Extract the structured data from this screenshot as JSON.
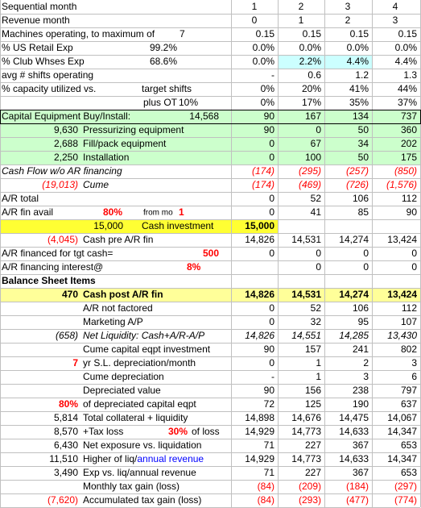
{
  "sheet": {
    "rows": [
      {
        "b": "Sequential month",
        "values": [
          "1",
          "2",
          "3",
          "4"
        ]
      },
      {
        "b": "Revenue month",
        "values": [
          "0",
          "1",
          "2",
          "3"
        ]
      },
      {
        "b": "Machines operating, to maximum of",
        "c": "7",
        "values": [
          "0.15",
          "0.15",
          "0.15",
          "0.15"
        ]
      },
      {
        "b": "% US Retail Exp",
        "c": "99.2%",
        "values": [
          "0.0%",
          "0.0%",
          "0.0%",
          "0.0%"
        ]
      },
      {
        "b": "% Club Whses Exp",
        "c": "68.6%",
        "values": [
          "0.0%",
          "2.2%",
          "4.4%",
          "4.4%"
        ]
      },
      {
        "b": "avg # shifts operating",
        "values": [
          "-",
          "0.6",
          "1.2",
          "1.3"
        ]
      },
      {
        "b": "% capacity utilized vs.",
        "c": "target shifts",
        "values": [
          "0%",
          "20%",
          "41%",
          "44%"
        ]
      },
      {
        "c": "plus OT",
        "d": "10%",
        "values": [
          "0%",
          "17%",
          "35%",
          "37%"
        ]
      },
      {
        "b": "Capital Equipment Buy/Install:",
        "c": "14,568",
        "values": [
          "90",
          "167",
          "134",
          "737"
        ]
      },
      {
        "a": "9,630",
        "b": "Pressurizing equipment",
        "values": [
          "90",
          "0",
          "50",
          "360"
        ]
      },
      {
        "a": "2,688",
        "b": "Fill/pack equipment",
        "values": [
          "0",
          "67",
          "34",
          "202"
        ]
      },
      {
        "a": "2,250",
        "b": "Installation",
        "values": [
          "0",
          "100",
          "50",
          "175"
        ]
      },
      {
        "b": "Cash Flow w/o AR financing",
        "values": [
          "(174)",
          "(295)",
          "(257)",
          "(850)"
        ]
      },
      {
        "a": "(19,013)",
        "b": "Cume",
        "values": [
          "(174)",
          "(469)",
          "(726)",
          "(1,576)"
        ]
      },
      {
        "b": "A/R total",
        "values": [
          "0",
          "52",
          "106",
          "112"
        ]
      },
      {
        "b": "A/R fin avail",
        "c": "80%",
        "d": "from mo",
        "e": "1",
        "values": [
          "0",
          "41",
          "85",
          "90"
        ]
      },
      {
        "a": "15,000",
        "b": "Cash investment",
        "values": [
          "15,000",
          null,
          null,
          null
        ]
      },
      {
        "a": "(4,045)",
        "b": "Cash pre A/R fin",
        "values": [
          "14,826",
          "14,531",
          "14,274",
          "13,424"
        ]
      },
      {
        "b": "A/R financed for tgt cash=",
        "c": "500",
        "values": [
          "0",
          "0",
          "0",
          "0"
        ]
      },
      {
        "b": "A/R financing interest@",
        "c": "8%",
        "values": [
          null,
          "0",
          "0",
          "0"
        ]
      },
      {
        "b": "Balance Sheet Items"
      },
      {
        "a": "470",
        "b": "Cash post A/R fin",
        "values": [
          "14,826",
          "14,531",
          "14,274",
          "13,424"
        ]
      },
      {
        "b": "A/R not factored",
        "values": [
          "0",
          "52",
          "106",
          "112"
        ]
      },
      {
        "b": "Marketing A/P",
        "values": [
          "0",
          "32",
          "95",
          "107"
        ]
      },
      {
        "a": "(658)",
        "b": "Net Liquidity: Cash+A/R-A/P",
        "values": [
          "14,826",
          "14,551",
          "14,285",
          "13,430"
        ]
      },
      {
        "b": "Cume capital eqpt investment",
        "values": [
          "90",
          "157",
          "241",
          "802"
        ]
      },
      {
        "a": "7",
        "b": "yr S.L. depreciation/month",
        "values": [
          "0",
          "1",
          "2",
          "3"
        ]
      },
      {
        "b": "Cume depreciation",
        "values": [
          "-",
          "1",
          "3",
          "6"
        ]
      },
      {
        "b": "Depreciated value",
        "values": [
          "90",
          "156",
          "238",
          "797"
        ]
      },
      {
        "a": "80%",
        "b": "of depreciated capital eqpt",
        "values": [
          "72",
          "125",
          "190",
          "637"
        ]
      },
      {
        "a": "5,814",
        "b": "Total collateral + liquidity",
        "values": [
          "14,898",
          "14,676",
          "14,475",
          "14,067"
        ]
      },
      {
        "a": "8,570",
        "b": "+Tax loss",
        "c": "30%",
        "d": "of loss",
        "values": [
          "14,929",
          "14,773",
          "14,633",
          "14,347"
        ]
      },
      {
        "a": "6,430",
        "b": "Net exposure vs. liquidation",
        "values": [
          "71",
          "227",
          "367",
          "653"
        ]
      },
      {
        "a": "11,510",
        "b": "Higher of liq/",
        "c": "annual revenue",
        "values": [
          "14,929",
          "14,773",
          "14,633",
          "14,347"
        ]
      },
      {
        "a": "3,490",
        "b": "Exp vs. liq/annual revenue",
        "values": [
          "71",
          "227",
          "367",
          "653"
        ]
      },
      {
        "b": "Monthly tax gain (loss)",
        "values": [
          "(84)",
          "(209)",
          "(184)",
          "(297)"
        ]
      },
      {
        "a": "(7,620)",
        "b": "Accumulated tax gain (loss)",
        "values": [
          "(84)",
          "(293)",
          "(477)",
          "(774)"
        ]
      }
    ]
  }
}
